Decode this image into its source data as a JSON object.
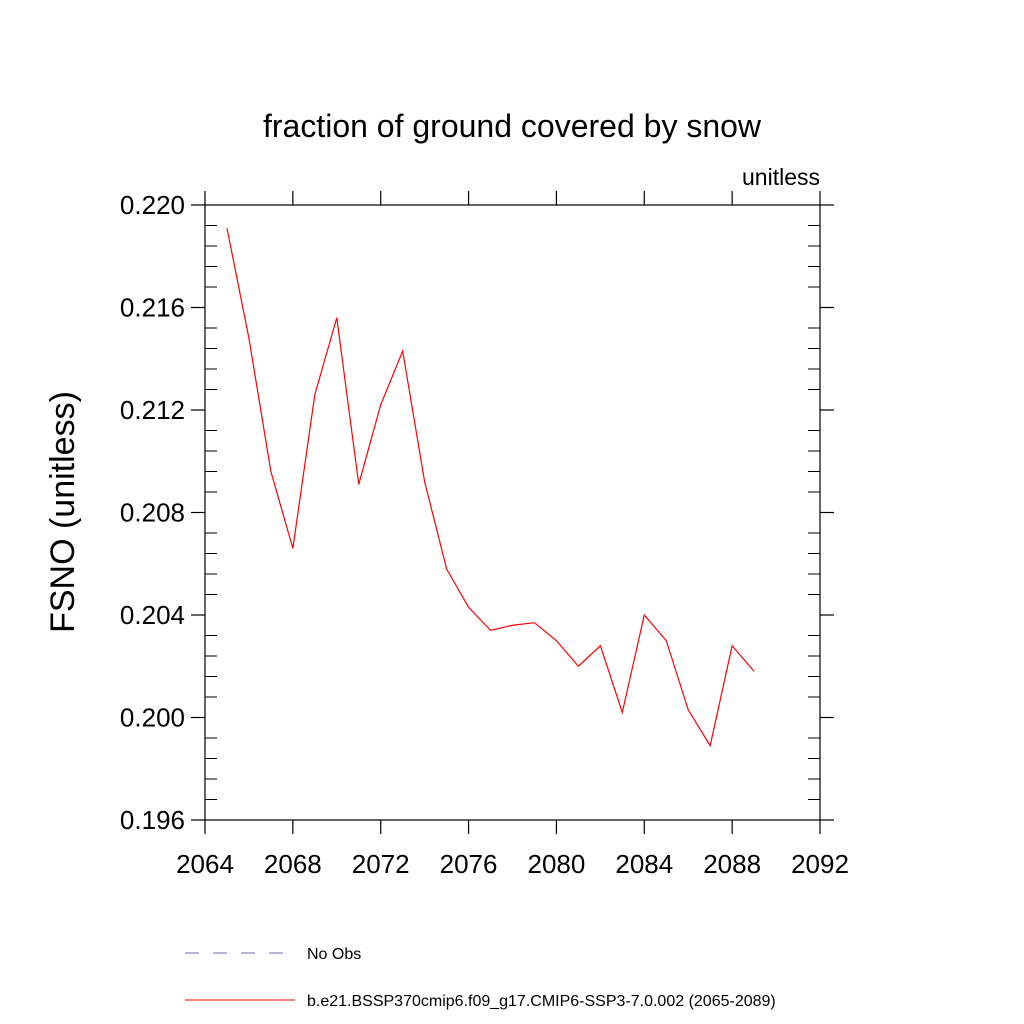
{
  "chart_data": {
    "type": "line",
    "title": "fraction of ground covered by snow",
    "units_label": "unitless",
    "ylabel": "FSNO  (unitless)",
    "xlabel": "",
    "xlim": [
      2064,
      2092
    ],
    "ylim": [
      0.196,
      0.22
    ],
    "x_ticks": [
      {
        "value": 2064,
        "label": "2064"
      },
      {
        "value": 2068,
        "label": "2068"
      },
      {
        "value": 2072,
        "label": "2072"
      },
      {
        "value": 2076,
        "label": "2076"
      },
      {
        "value": 2080,
        "label": "2080"
      },
      {
        "value": 2084,
        "label": "2084"
      },
      {
        "value": 2088,
        "label": "2088"
      },
      {
        "value": 2092,
        "label": "2092"
      }
    ],
    "y_ticks": [
      {
        "value": 0.196,
        "label": "0.196"
      },
      {
        "value": 0.2,
        "label": "0.200"
      },
      {
        "value": 0.204,
        "label": "0.204"
      },
      {
        "value": 0.208,
        "label": "0.208"
      },
      {
        "value": 0.212,
        "label": "0.212"
      },
      {
        "value": 0.216,
        "label": "0.216"
      },
      {
        "value": 0.22,
        "label": "0.220"
      }
    ],
    "grid": false,
    "legend_position": "bottom",
    "series": [
      {
        "name": "No Obs",
        "color": "#6a6ab0",
        "dash": "dashed",
        "x": [],
        "values": []
      },
      {
        "name": "b.e21.BSSP370cmip6.f09_g17.CMIP6-SSP3-7.0.002 (2065-2089)",
        "color": "#ff0000",
        "dash": "solid",
        "x": [
          2065,
          2066,
          2067,
          2068,
          2069,
          2070,
          2071,
          2072,
          2073,
          2074,
          2075,
          2076,
          2077,
          2078,
          2079,
          2080,
          2081,
          2082,
          2083,
          2084,
          2085,
          2086,
          2087,
          2088,
          2089
        ],
        "values": [
          0.2191,
          0.2148,
          0.2096,
          0.2066,
          0.2126,
          0.2156,
          0.2091,
          0.2122,
          0.2143,
          0.2092,
          0.2058,
          0.2043,
          0.2034,
          0.2036,
          0.2037,
          0.203,
          0.202,
          0.2028,
          0.2002,
          0.204,
          0.203,
          0.2003,
          0.1989,
          0.2028,
          0.2018
        ]
      }
    ]
  }
}
